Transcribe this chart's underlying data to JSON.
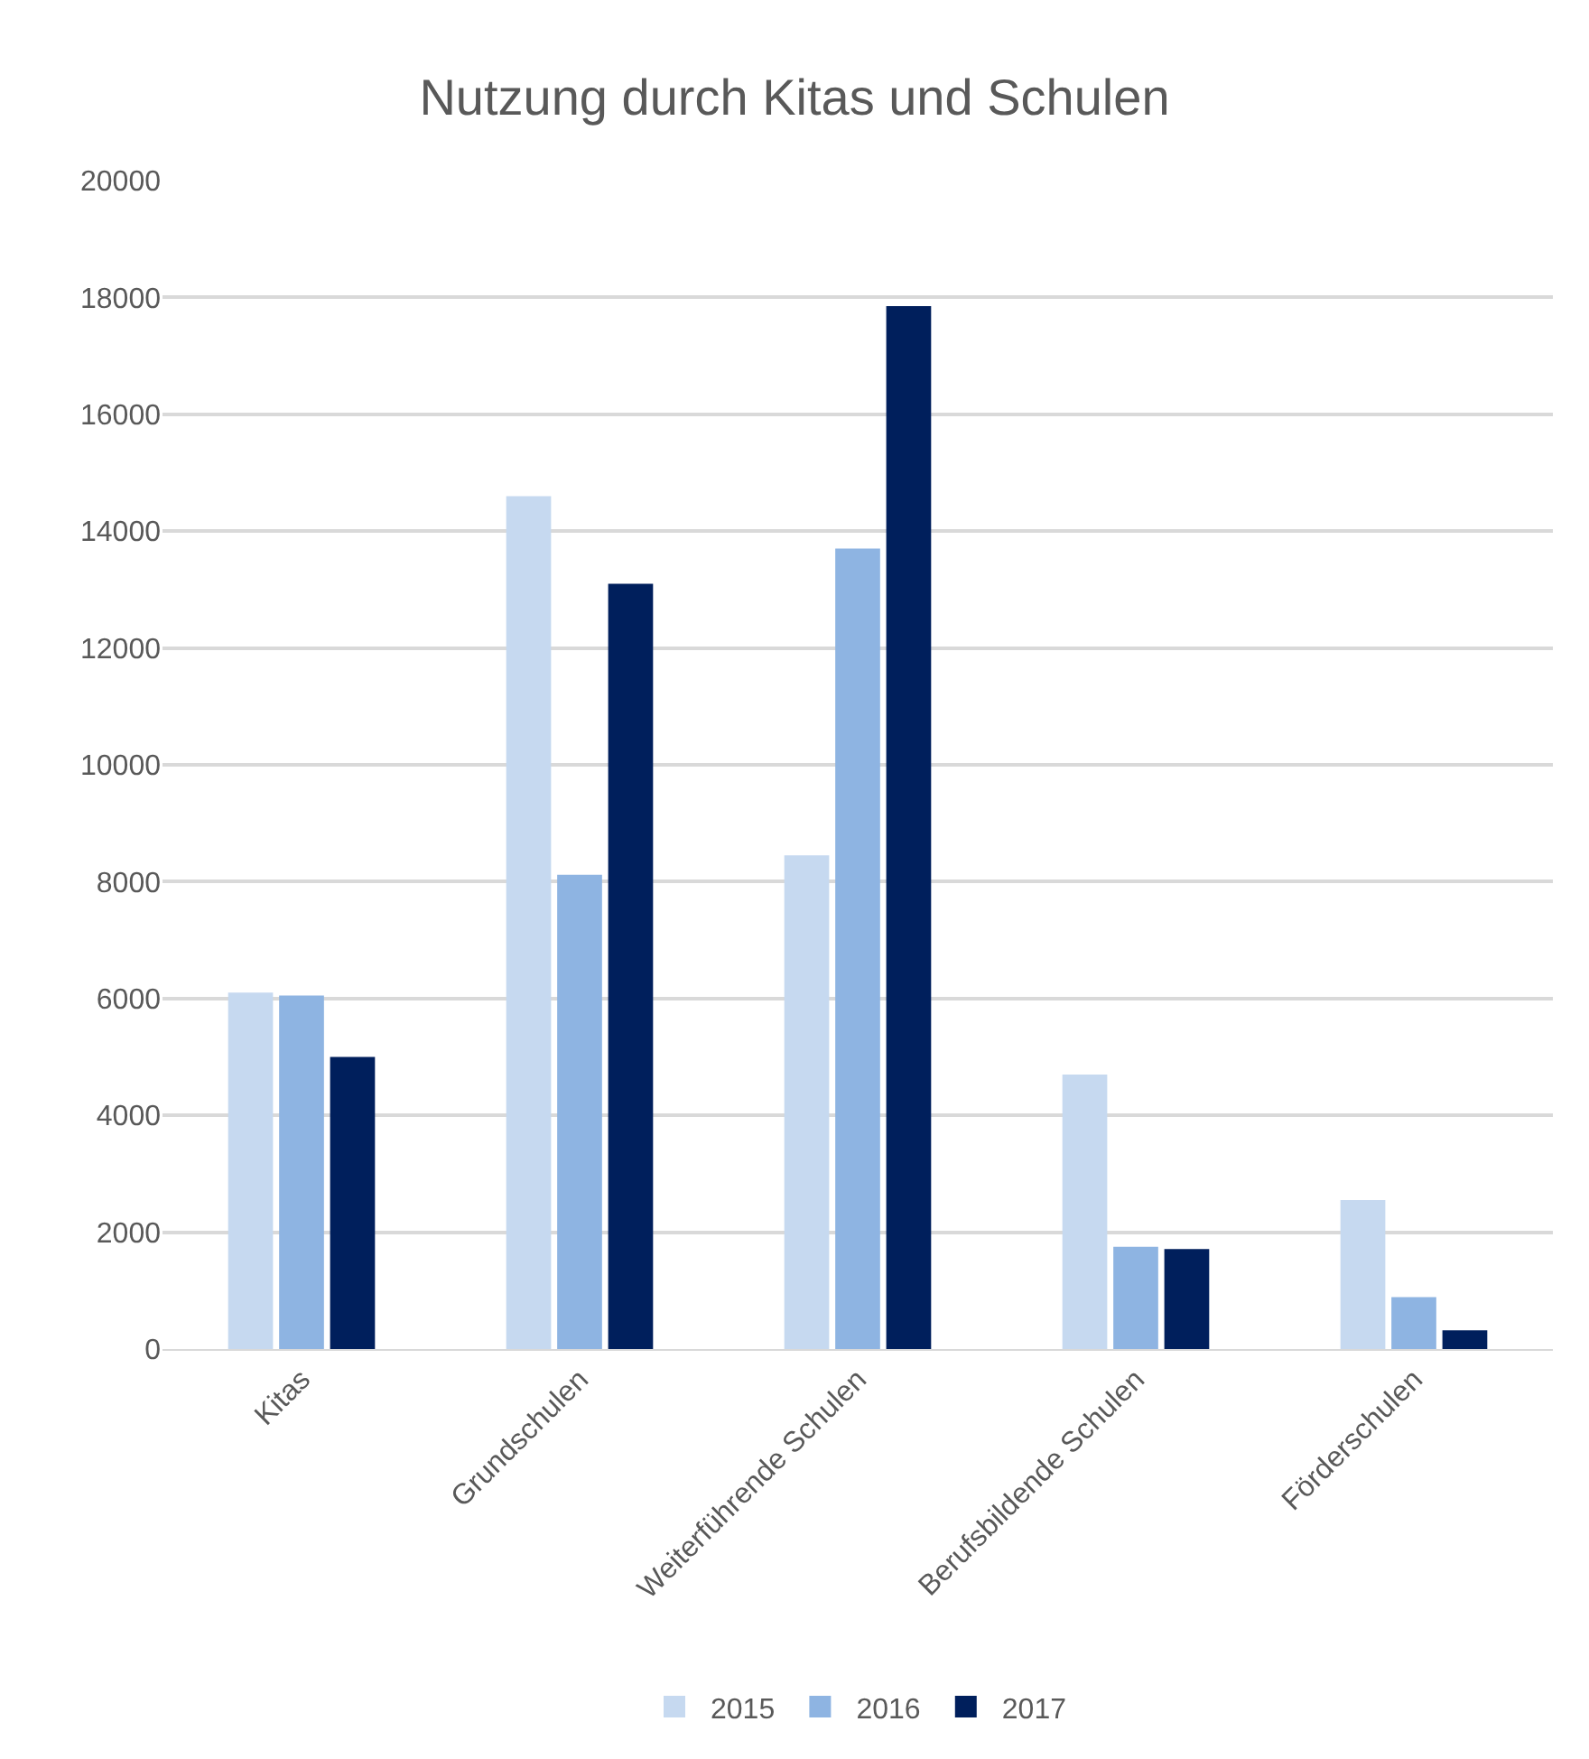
{
  "chart_data": {
    "type": "bar",
    "title": "Nutzung durch Kitas und Schulen",
    "categories": [
      "Kitas",
      "Grundschulen",
      "Weiterführende Schulen",
      "Berufsbildende Schulen",
      "Förderschulen"
    ],
    "series": [
      {
        "name": "2015",
        "color": "#c6d9f0",
        "values": [
          6100,
          14600,
          8450,
          4700,
          2550
        ]
      },
      {
        "name": "2016",
        "color": "#8eb4e2",
        "values": [
          6050,
          8120,
          13700,
          1750,
          890
        ]
      },
      {
        "name": "2017",
        "color": "#001f5c",
        "values": [
          5000,
          13100,
          17850,
          1710,
          320
        ]
      }
    ],
    "ylim": [
      0,
      20000
    ],
    "yticks": [
      0,
      2000,
      4000,
      6000,
      8000,
      10000,
      12000,
      14000,
      16000,
      18000,
      20000
    ],
    "grid": "y",
    "legend": "bottom"
  }
}
